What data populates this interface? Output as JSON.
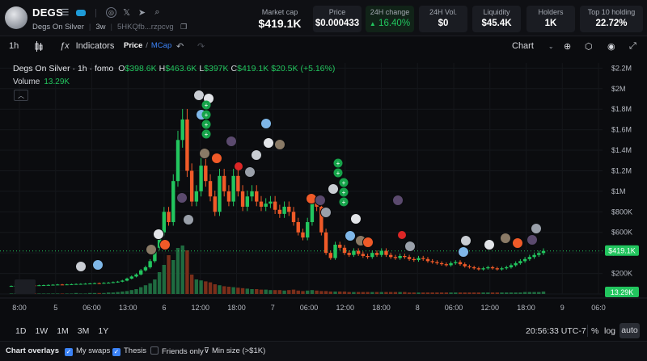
{
  "token": {
    "symbol": "DEGS",
    "name": "Degs On Silver",
    "age": "3w",
    "address": "5HKQfb...rzpcvg"
  },
  "icons": [
    "menu-icon",
    "badge-icon",
    "globe-icon",
    "x-icon",
    "telegram-icon",
    "search-icon",
    "copy-icon"
  ],
  "stats": {
    "market_cap": {
      "label": "Market cap",
      "value": "$419.1K"
    },
    "price": {
      "label": "Price",
      "value": "$0.000433"
    },
    "change_24h": {
      "label": "24H change",
      "value": "16.40%"
    },
    "vol_24h": {
      "label": "24H Vol.",
      "value": "$0"
    },
    "liquidity": {
      "label": "Liquidity",
      "value": "$45.4K"
    },
    "holders": {
      "label": "Holders",
      "value": "1K"
    },
    "top10": {
      "label": "Top 10 holding",
      "value": "22.72%"
    }
  },
  "toolbar": {
    "interval": "1h",
    "indicators": "Indicators",
    "price": "Price",
    "slash": "/",
    "mcap": "MCap",
    "chart_mode": "Chart"
  },
  "legend": {
    "title": "Degs On Silver · 1h · fomo",
    "o_key": "O",
    "o": "$398.6K",
    "h_key": "H",
    "h": "$463.6K",
    "l_key": "L",
    "l": "$397K",
    "c_key": "C",
    "c": "$419.1K",
    "chg": "$20.5K (+5.16%)",
    "volume_label": "Volume",
    "volume": "13.29K"
  },
  "bottom": {
    "ranges": [
      "1D",
      "1W",
      "1M",
      "3M",
      "1Y"
    ],
    "time": "20:56:33 UTC-7",
    "pct": "%",
    "log": "log",
    "auto": "auto"
  },
  "overlays": {
    "label": "Chart overlays",
    "my_swaps": "My swaps",
    "thesis": "Thesis",
    "friends_only": "Friends only",
    "min_size": "Min size (>$1K)"
  },
  "chart_data": {
    "type": "candlestick",
    "title": "Degs On Silver · 1h · fomo",
    "y_ticks": [
      "$2.2M",
      "$2M",
      "$1.8M",
      "$1.6M",
      "$1.4M",
      "$1.2M",
      "$1M",
      "$800K",
      "$600K",
      "$400K",
      "$200K",
      "$0"
    ],
    "y_tick_values": [
      2200000,
      2000000,
      1800000,
      1600000,
      1400000,
      1200000,
      1000000,
      800000,
      600000,
      400000,
      200000,
      0
    ],
    "x_ticks": [
      "8:00",
      "5",
      "06:00",
      "13:00",
      "6",
      "12:00",
      "18:00",
      "7",
      "06:00",
      "12:00",
      "18:00",
      "8",
      "06:00",
      "12:00",
      "18:00",
      "9",
      "06:0"
    ],
    "last_price_label": "$419.1K",
    "last_volume_label": "13.29K",
    "ylim": [
      0,
      2250000
    ],
    "colors": {
      "up": "#22c55e",
      "down": "#f05a28",
      "vol_up": "#1f6b40",
      "vol_down": "#7a2e1a"
    },
    "candles_o": [
      75000,
      78000,
      80000,
      79000,
      82000,
      84000,
      83000,
      85000,
      86000,
      88000,
      90000,
      92000,
      91000,
      93000,
      95000,
      97000,
      98000,
      100000,
      102000,
      105000,
      104000,
      108000,
      110000,
      115000,
      120000,
      130000,
      150000,
      170000,
      190000,
      230000,
      260000,
      320000,
      450000,
      600000,
      800000,
      700000,
      1100000,
      1500000,
      1700000,
      1200000,
      900000,
      1000000,
      1250000,
      1100000,
      950000,
      800000,
      1150000,
      1000000,
      900000,
      1150000,
      1000000,
      850000,
      950000,
      1000000,
      900000,
      850000,
      880000,
      900000,
      820000,
      780000,
      850000,
      800000,
      700000,
      600000,
      550000,
      700000,
      900000,
      850000,
      600000,
      400000,
      350000,
      480000,
      450000,
      400000,
      380000,
      420000,
      390000,
      370000,
      360000,
      400000,
      380000,
      420000,
      380000,
      360000,
      350000,
      370000,
      360000,
      340000,
      330000,
      350000,
      340000,
      320000,
      310000,
      300000,
      290000,
      280000,
      300000,
      310000,
      290000,
      270000,
      260000,
      250000,
      240000,
      250000,
      260000,
      250000,
      240000,
      250000,
      260000,
      280000,
      300000,
      320000,
      340000,
      360000,
      380000,
      398600
    ],
    "candles_c": [
      78000,
      80000,
      79000,
      82000,
      84000,
      83000,
      85000,
      86000,
      88000,
      90000,
      92000,
      91000,
      93000,
      95000,
      97000,
      98000,
      100000,
      102000,
      105000,
      104000,
      108000,
      110000,
      115000,
      120000,
      130000,
      150000,
      170000,
      190000,
      230000,
      260000,
      320000,
      450000,
      600000,
      800000,
      700000,
      1100000,
      1500000,
      1700000,
      1200000,
      900000,
      1000000,
      1250000,
      1100000,
      950000,
      800000,
      1150000,
      1000000,
      900000,
      1150000,
      1000000,
      850000,
      950000,
      1000000,
      900000,
      850000,
      880000,
      900000,
      820000,
      780000,
      850000,
      800000,
      700000,
      600000,
      550000,
      700000,
      900000,
      850000,
      600000,
      400000,
      350000,
      480000,
      450000,
      400000,
      380000,
      420000,
      390000,
      370000,
      360000,
      400000,
      380000,
      420000,
      380000,
      360000,
      350000,
      370000,
      360000,
      340000,
      330000,
      350000,
      340000,
      320000,
      310000,
      300000,
      290000,
      280000,
      300000,
      310000,
      290000,
      270000,
      260000,
      250000,
      240000,
      250000,
      260000,
      250000,
      240000,
      250000,
      260000,
      280000,
      300000,
      320000,
      340000,
      360000,
      380000,
      398600,
      419100
    ],
    "volumes": [
      1,
      1,
      1,
      1,
      1,
      1,
      1,
      1,
      1,
      1,
      1,
      1,
      1,
      1,
      2,
      1,
      1,
      2,
      2,
      2,
      2,
      3,
      3,
      4,
      5,
      6,
      8,
      10,
      14,
      18,
      22,
      30,
      45,
      60,
      80,
      70,
      95,
      100,
      90,
      40,
      30,
      28,
      26,
      24,
      20,
      18,
      16,
      15,
      14,
      13,
      12,
      11,
      10,
      10,
      9,
      9,
      8,
      8,
      8,
      7,
      8,
      9,
      7,
      6,
      7,
      8,
      7,
      6,
      6,
      5,
      5,
      5,
      5,
      4,
      4,
      4,
      4,
      4,
      4,
      4,
      4,
      4,
      4,
      4,
      4,
      4,
      3,
      3,
      3,
      3,
      3,
      3,
      3,
      3,
      3,
      3,
      3,
      3,
      3,
      3,
      3,
      3,
      3,
      3,
      3,
      3,
      3,
      3,
      3,
      3,
      3,
      4,
      4,
      4,
      4,
      5
    ]
  }
}
